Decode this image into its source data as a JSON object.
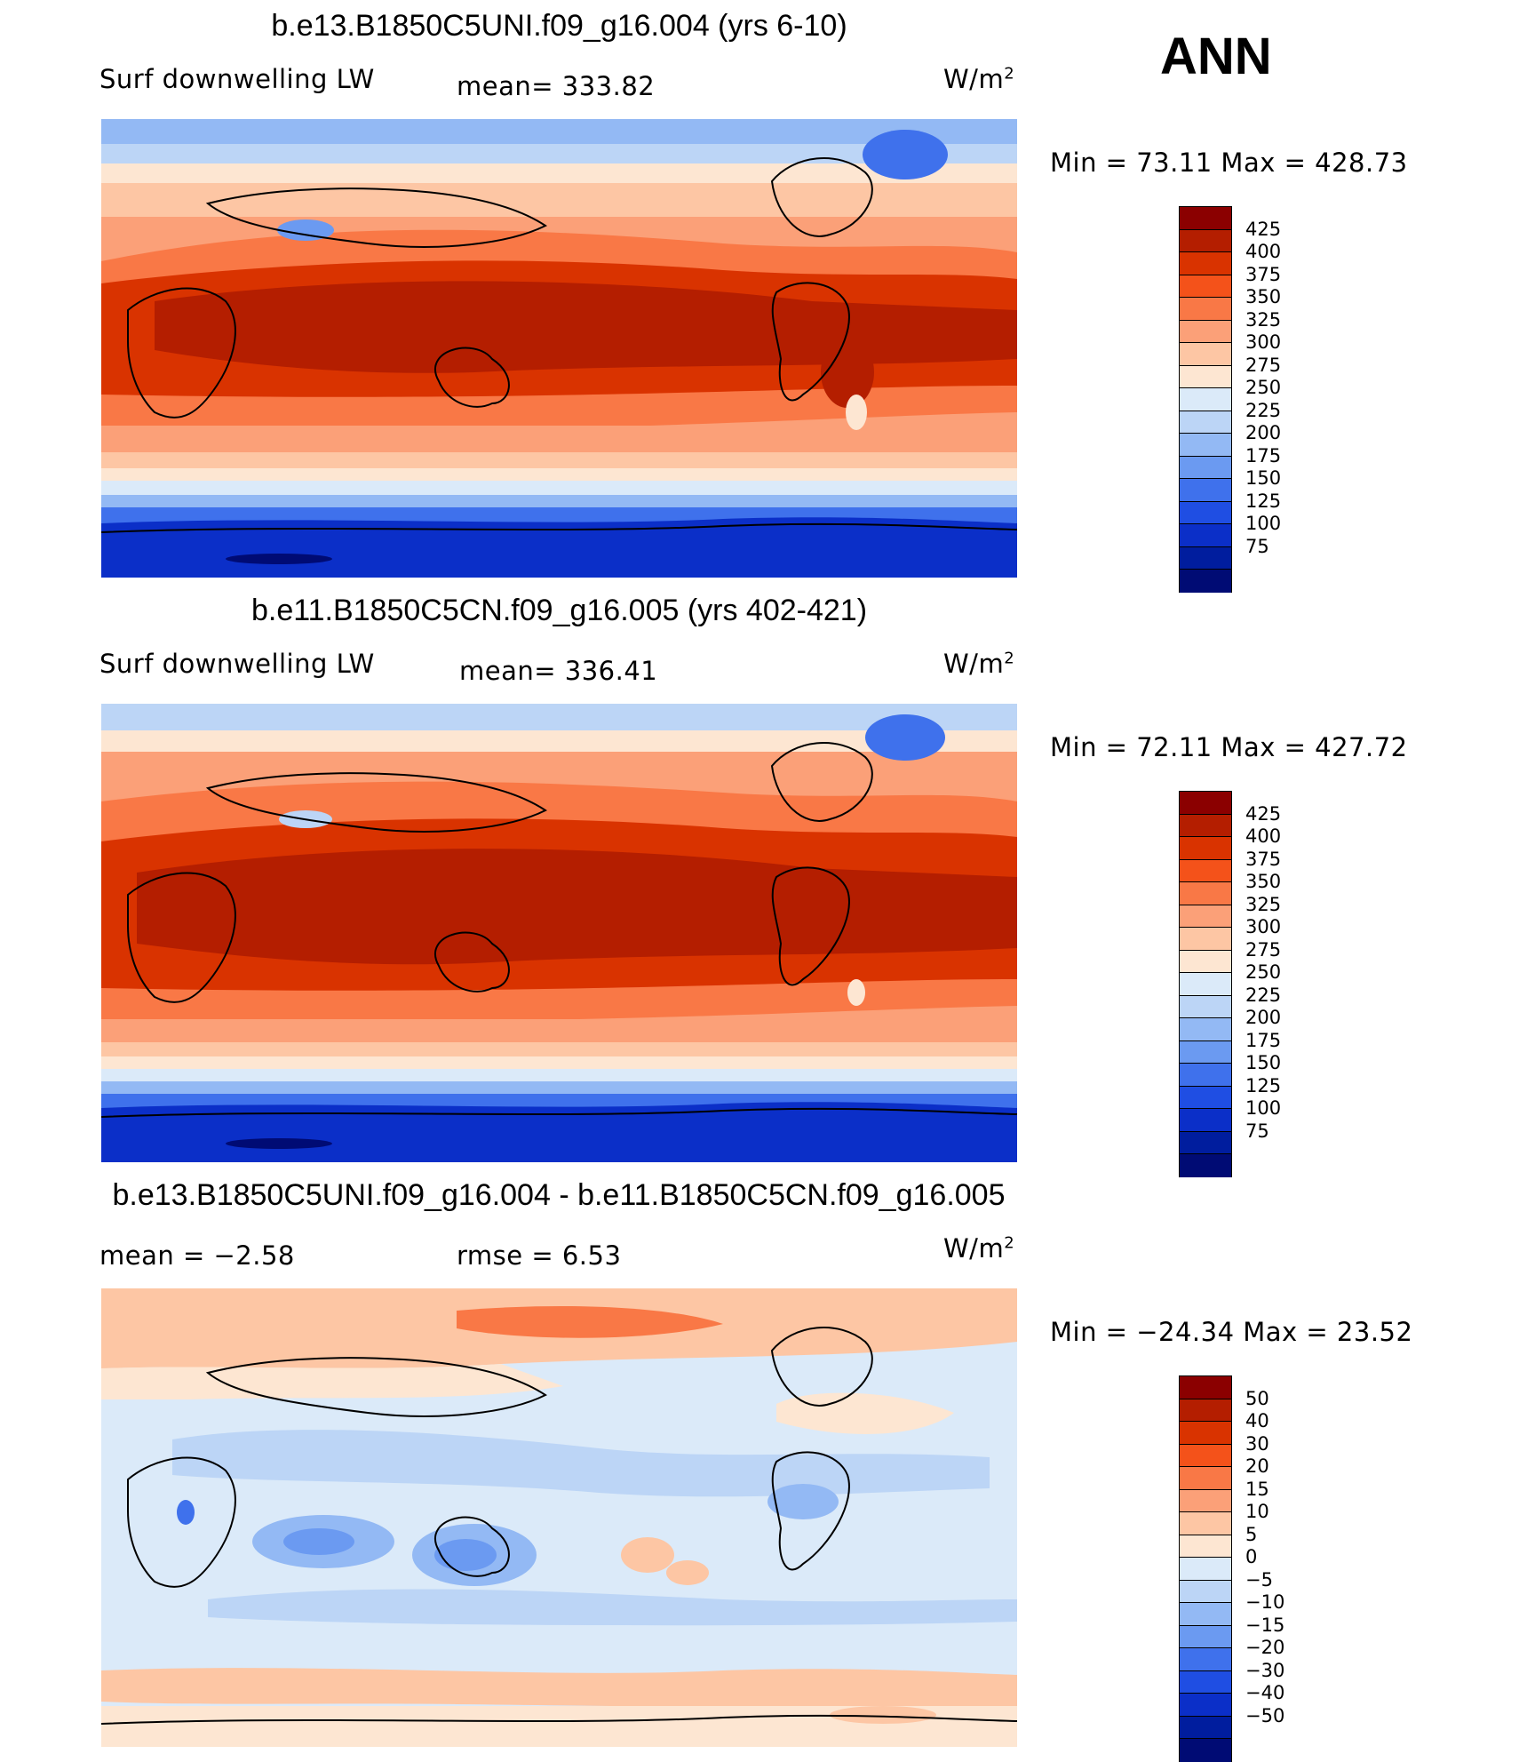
{
  "season": "ANN",
  "panels": [
    {
      "title": "b.e13.B1850C5UNI.f09_g16.004 (yrs 6-10)",
      "left_label": "Surf  downwelling  LW",
      "center_label": "mean=  333.82",
      "units_label": "W/m",
      "units_sup": "2",
      "minmax": "Min  =    73.11  Max  =  428.73",
      "colorbar": {
        "labels": [
          "425",
          "400",
          "375",
          "350",
          "325",
          "300",
          "275",
          "250",
          "225",
          "200",
          "175",
          "150",
          "125",
          "100",
          "75"
        ],
        "colors": [
          "#8b0000",
          "#b41e00",
          "#d93300",
          "#f4521a",
          "#f97846",
          "#fba078",
          "#fdc6a4",
          "#fde6d2",
          "#dbeaf9",
          "#bcd5f6",
          "#93b9f4",
          "#6b9af1",
          "#3f71ec",
          "#1f4ee3",
          "#0b2fc8",
          "#001d9e",
          "#000b74"
        ]
      }
    },
    {
      "title": "b.e11.B1850C5CN.f09_g16.005 (yrs 402-421)",
      "left_label": "Surf  downwelling  LW",
      "center_label": "mean=  336.41",
      "units_label": "W/m",
      "units_sup": "2",
      "minmax": "Min  =    72.11  Max  =  427.72",
      "colorbar": {
        "labels": [
          "425",
          "400",
          "375",
          "350",
          "325",
          "300",
          "275",
          "250",
          "225",
          "200",
          "175",
          "150",
          "125",
          "100",
          "75"
        ],
        "colors": [
          "#8b0000",
          "#b41e00",
          "#d93300",
          "#f4521a",
          "#f97846",
          "#fba078",
          "#fdc6a4",
          "#fde6d2",
          "#dbeaf9",
          "#bcd5f6",
          "#93b9f4",
          "#6b9af1",
          "#3f71ec",
          "#1f4ee3",
          "#0b2fc8",
          "#001d9e",
          "#000b74"
        ]
      }
    },
    {
      "title": "b.e13.B1850C5UNI.f09_g16.004 - b.e11.B1850C5CN.f09_g16.005",
      "left_label": "mean  =    −2.58",
      "center_label": "rmse  =     6.53",
      "units_label": "W/m",
      "units_sup": "2",
      "minmax": "Min  =  −24.34  Max  =    23.52",
      "colorbar": {
        "labels": [
          "50",
          "40",
          "30",
          "20",
          "15",
          "10",
          "5",
          "0",
          "−5",
          "−10",
          "−15",
          "−20",
          "−30",
          "−40",
          "−50"
        ],
        "colors": [
          "#8b0000",
          "#b41e00",
          "#d93300",
          "#f4521a",
          "#f97846",
          "#fba078",
          "#fdc6a4",
          "#fde6d2",
          "#dbeaf9",
          "#bcd5f6",
          "#93b9f4",
          "#6b9af1",
          "#3f71ec",
          "#1f4ee3",
          "#0b2fc8",
          "#001d9e",
          "#000b74"
        ]
      }
    }
  ]
}
